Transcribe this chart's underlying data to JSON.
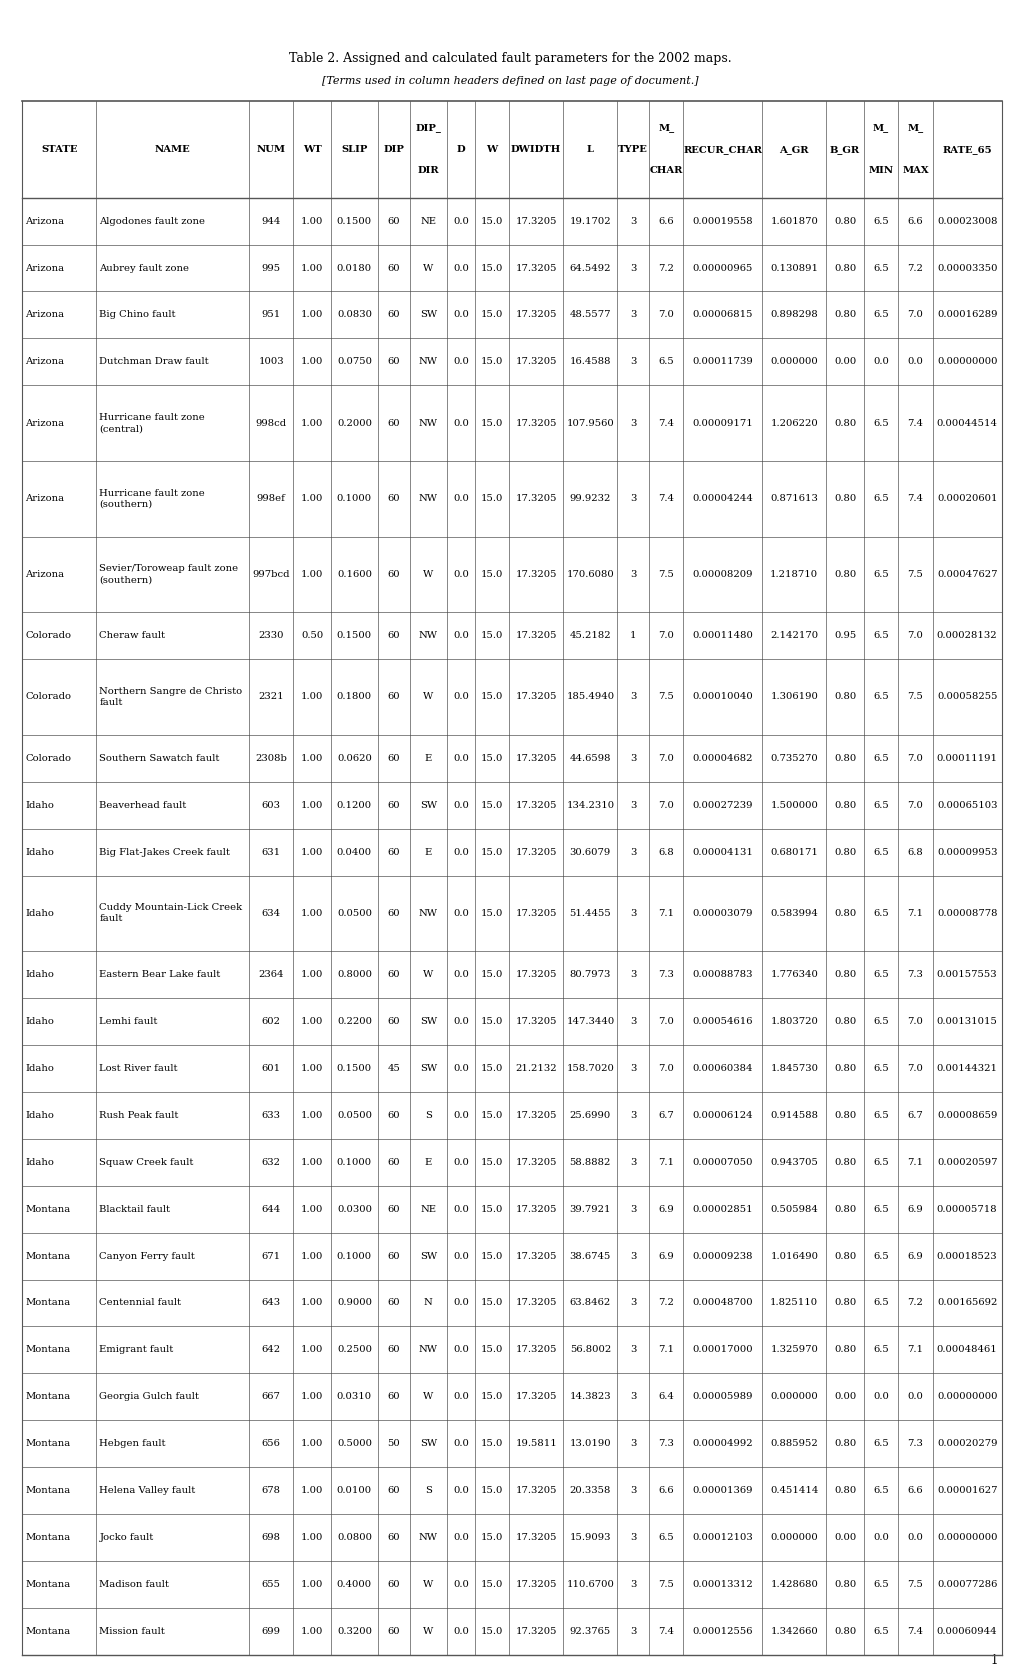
{
  "title": "Table 2. Assigned and calculated fault parameters for the 2002 maps.",
  "subtitle": "[Terms used in column headers defined on last page of document.]",
  "header_labels_l1": [
    "STATE",
    "NAME",
    "NUM",
    "WT",
    "SLIP",
    "DIP",
    "DIP_",
    "D",
    "W",
    "DWIDTH",
    "L",
    "TYPE",
    "M_",
    "RECUR_CHAR",
    "A_GR",
    "B_GR",
    "M_",
    "M_",
    "RATE_65"
  ],
  "header_labels_l2": [
    "",
    "",
    "",
    "",
    "",
    "",
    "DIR",
    "",
    "",
    "",
    "",
    "",
    "CHAR",
    "",
    "",
    "",
    "MIN",
    "MAX",
    ""
  ],
  "rows": [
    [
      "Arizona",
      "Algodones fault zone",
      "944",
      "1.00",
      "0.1500",
      "60",
      "NE",
      "0.0",
      "15.0",
      "17.3205",
      "19.1702",
      "3",
      "6.6",
      "0.00019558",
      "1.601870",
      "0.80",
      "6.5",
      "6.6",
      "0.00023008"
    ],
    [
      "Arizona",
      "Aubrey fault zone",
      "995",
      "1.00",
      "0.0180",
      "60",
      "W",
      "0.0",
      "15.0",
      "17.3205",
      "64.5492",
      "3",
      "7.2",
      "0.00000965",
      "0.130891",
      "0.80",
      "6.5",
      "7.2",
      "0.00003350"
    ],
    [
      "Arizona",
      "Big Chino fault",
      "951",
      "1.00",
      "0.0830",
      "60",
      "SW",
      "0.0",
      "15.0",
      "17.3205",
      "48.5577",
      "3",
      "7.0",
      "0.00006815",
      "0.898298",
      "0.80",
      "6.5",
      "7.0",
      "0.00016289"
    ],
    [
      "Arizona",
      "Dutchman Draw fault",
      "1003",
      "1.00",
      "0.0750",
      "60",
      "NW",
      "0.0",
      "15.0",
      "17.3205",
      "16.4588",
      "3",
      "6.5",
      "0.00011739",
      "0.000000",
      "0.00",
      "0.0",
      "0.0",
      "0.00000000"
    ],
    [
      "Arizona",
      "Hurricane fault zone\n(central)",
      "998cd",
      "1.00",
      "0.2000",
      "60",
      "NW",
      "0.0",
      "15.0",
      "17.3205",
      "107.9560",
      "3",
      "7.4",
      "0.00009171",
      "1.206220",
      "0.80",
      "6.5",
      "7.4",
      "0.00044514"
    ],
    [
      "Arizona",
      "Hurricane fault zone\n(southern)",
      "998ef",
      "1.00",
      "0.1000",
      "60",
      "NW",
      "0.0",
      "15.0",
      "17.3205",
      "99.9232",
      "3",
      "7.4",
      "0.00004244",
      "0.871613",
      "0.80",
      "6.5",
      "7.4",
      "0.00020601"
    ],
    [
      "Arizona",
      "Sevier/Toroweap fault zone\n(southern)",
      "997bcd",
      "1.00",
      "0.1600",
      "60",
      "W",
      "0.0",
      "15.0",
      "17.3205",
      "170.6080",
      "3",
      "7.5",
      "0.00008209",
      "1.218710",
      "0.80",
      "6.5",
      "7.5",
      "0.00047627"
    ],
    [
      "Colorado",
      "Cheraw fault",
      "2330",
      "0.50",
      "0.1500",
      "60",
      "NW",
      "0.0",
      "15.0",
      "17.3205",
      "45.2182",
      "1",
      "7.0",
      "0.00011480",
      "2.142170",
      "0.95",
      "6.5",
      "7.0",
      "0.00028132"
    ],
    [
      "Colorado",
      "Northern Sangre de Christo\nfault",
      "2321",
      "1.00",
      "0.1800",
      "60",
      "W",
      "0.0",
      "15.0",
      "17.3205",
      "185.4940",
      "3",
      "7.5",
      "0.00010040",
      "1.306190",
      "0.80",
      "6.5",
      "7.5",
      "0.00058255"
    ],
    [
      "Colorado",
      "Southern Sawatch fault",
      "2308b",
      "1.00",
      "0.0620",
      "60",
      "E",
      "0.0",
      "15.0",
      "17.3205",
      "44.6598",
      "3",
      "7.0",
      "0.00004682",
      "0.735270",
      "0.80",
      "6.5",
      "7.0",
      "0.00011191"
    ],
    [
      "Idaho",
      "Beaverhead fault",
      "603",
      "1.00",
      "0.1200",
      "60",
      "SW",
      "0.0",
      "15.0",
      "17.3205",
      "134.2310",
      "3",
      "7.0",
      "0.00027239",
      "1.500000",
      "0.80",
      "6.5",
      "7.0",
      "0.00065103"
    ],
    [
      "Idaho",
      "Big Flat-Jakes Creek fault",
      "631",
      "1.00",
      "0.0400",
      "60",
      "E",
      "0.0",
      "15.0",
      "17.3205",
      "30.6079",
      "3",
      "6.8",
      "0.00004131",
      "0.680171",
      "0.80",
      "6.5",
      "6.8",
      "0.00009953"
    ],
    [
      "Idaho",
      "Cuddy Mountain-Lick Creek\nfault",
      "634",
      "1.00",
      "0.0500",
      "60",
      "NW",
      "0.0",
      "15.0",
      "17.3205",
      "51.4455",
      "3",
      "7.1",
      "0.00003079",
      "0.583994",
      "0.80",
      "6.5",
      "7.1",
      "0.00008778"
    ],
    [
      "Idaho",
      "Eastern Bear Lake fault",
      "2364",
      "1.00",
      "0.8000",
      "60",
      "W",
      "0.0",
      "15.0",
      "17.3205",
      "80.7973",
      "3",
      "7.3",
      "0.00088783",
      "1.776340",
      "0.80",
      "6.5",
      "7.3",
      "0.00157553"
    ],
    [
      "Idaho",
      "Lemhi fault",
      "602",
      "1.00",
      "0.2200",
      "60",
      "SW",
      "0.0",
      "15.0",
      "17.3205",
      "147.3440",
      "3",
      "7.0",
      "0.00054616",
      "1.803720",
      "0.80",
      "6.5",
      "7.0",
      "0.00131015"
    ],
    [
      "Idaho",
      "Lost River fault",
      "601",
      "1.00",
      "0.1500",
      "45",
      "SW",
      "0.0",
      "15.0",
      "21.2132",
      "158.7020",
      "3",
      "7.0",
      "0.00060384",
      "1.845730",
      "0.80",
      "6.5",
      "7.0",
      "0.00144321"
    ],
    [
      "Idaho",
      "Rush Peak fault",
      "633",
      "1.00",
      "0.0500",
      "60",
      "S",
      "0.0",
      "15.0",
      "17.3205",
      "25.6990",
      "3",
      "6.7",
      "0.00006124",
      "0.914588",
      "0.80",
      "6.5",
      "6.7",
      "0.00008659"
    ],
    [
      "Idaho",
      "Squaw Creek fault",
      "632",
      "1.00",
      "0.1000",
      "60",
      "E",
      "0.0",
      "15.0",
      "17.3205",
      "58.8882",
      "3",
      "7.1",
      "0.00007050",
      "0.943705",
      "0.80",
      "6.5",
      "7.1",
      "0.00020597"
    ],
    [
      "Montana",
      "Blacktail fault",
      "644",
      "1.00",
      "0.0300",
      "60",
      "NE",
      "0.0",
      "15.0",
      "17.3205",
      "39.7921",
      "3",
      "6.9",
      "0.00002851",
      "0.505984",
      "0.80",
      "6.5",
      "6.9",
      "0.00005718"
    ],
    [
      "Montana",
      "Canyon Ferry fault",
      "671",
      "1.00",
      "0.1000",
      "60",
      "SW",
      "0.0",
      "15.0",
      "17.3205",
      "38.6745",
      "3",
      "6.9",
      "0.00009238",
      "1.016490",
      "0.80",
      "6.5",
      "6.9",
      "0.00018523"
    ],
    [
      "Montana",
      "Centennial fault",
      "643",
      "1.00",
      "0.9000",
      "60",
      "N",
      "0.0",
      "15.0",
      "17.3205",
      "63.8462",
      "3",
      "7.2",
      "0.00048700",
      "1.825110",
      "0.80",
      "6.5",
      "7.2",
      "0.00165692"
    ],
    [
      "Montana",
      "Emigrant fault",
      "642",
      "1.00",
      "0.2500",
      "60",
      "NW",
      "0.0",
      "15.0",
      "17.3205",
      "56.8002",
      "3",
      "7.1",
      "0.00017000",
      "1.325970",
      "0.80",
      "6.5",
      "7.1",
      "0.00048461"
    ],
    [
      "Montana",
      "Georgia Gulch fault",
      "667",
      "1.00",
      "0.0310",
      "60",
      "W",
      "0.0",
      "15.0",
      "17.3205",
      "14.3823",
      "3",
      "6.4",
      "0.00005989",
      "0.000000",
      "0.00",
      "0.0",
      "0.0",
      "0.00000000"
    ],
    [
      "Montana",
      "Hebgen fault",
      "656",
      "1.00",
      "0.5000",
      "50",
      "SW",
      "0.0",
      "15.0",
      "19.5811",
      "13.0190",
      "3",
      "7.3",
      "0.00004992",
      "0.885952",
      "0.80",
      "6.5",
      "7.3",
      "0.00020279"
    ],
    [
      "Montana",
      "Helena Valley fault",
      "678",
      "1.00",
      "0.0100",
      "60",
      "S",
      "0.0",
      "15.0",
      "17.3205",
      "20.3358",
      "3",
      "6.6",
      "0.00001369",
      "0.451414",
      "0.80",
      "6.5",
      "6.6",
      "0.00001627"
    ],
    [
      "Montana",
      "Jocko fault",
      "698",
      "1.00",
      "0.0800",
      "60",
      "NW",
      "0.0",
      "15.0",
      "17.3205",
      "15.9093",
      "3",
      "6.5",
      "0.00012103",
      "0.000000",
      "0.00",
      "0.0",
      "0.0",
      "0.00000000"
    ],
    [
      "Montana",
      "Madison fault",
      "655",
      "1.00",
      "0.4000",
      "60",
      "W",
      "0.0",
      "15.0",
      "17.3205",
      "110.6700",
      "3",
      "7.5",
      "0.00013312",
      "1.428680",
      "0.80",
      "6.5",
      "7.5",
      "0.00077286"
    ],
    [
      "Montana",
      "Mission fault",
      "699",
      "1.00",
      "0.3200",
      "60",
      "W",
      "0.0",
      "15.0",
      "17.3205",
      "92.3765",
      "3",
      "7.4",
      "0.00012556",
      "1.342660",
      "0.80",
      "6.5",
      "7.4",
      "0.00060944"
    ]
  ],
  "col_widths_rel": [
    7.5,
    15.5,
    4.5,
    3.8,
    4.8,
    3.2,
    3.8,
    2.8,
    3.5,
    5.5,
    5.5,
    3.2,
    3.5,
    8.0,
    6.5,
    3.8,
    3.5,
    3.5,
    7.0
  ],
  "text_color": "#000000",
  "border_color": "#555555",
  "title_fontsize": 9.0,
  "subtitle_fontsize": 8.0,
  "table_fontsize": 7.2,
  "header_fontsize": 7.2
}
